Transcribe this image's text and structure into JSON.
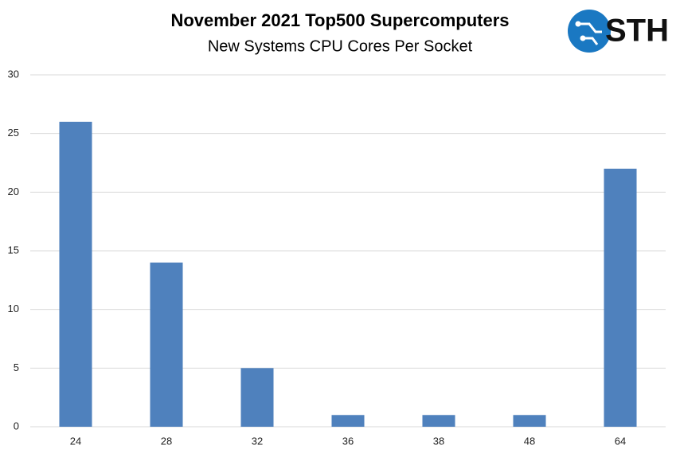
{
  "chart_data": {
    "type": "bar",
    "title": "November 2021 Top500 Supercomputers",
    "subtitle": "New Systems CPU Cores Per Socket",
    "categories": [
      "24",
      "28",
      "32",
      "36",
      "38",
      "48",
      "64"
    ],
    "values": [
      26,
      14,
      5,
      1,
      1,
      1,
      22
    ],
    "color": "#4f81bd",
    "ylim": [
      0,
      30
    ],
    "yticks": [
      0,
      5,
      10,
      15,
      20,
      25,
      30
    ],
    "grid": true
  },
  "logo": {
    "text": "STH"
  }
}
